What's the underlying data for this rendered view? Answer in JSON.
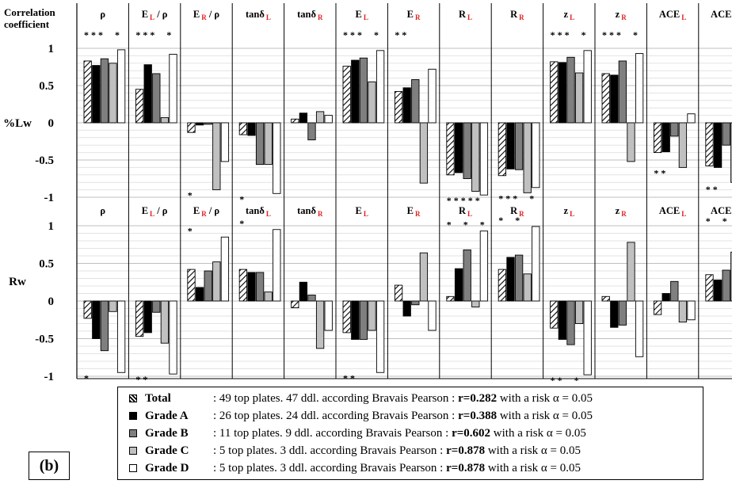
{
  "corner_label": [
    "Correlation",
    "coefficient"
  ],
  "chart_data": {
    "type": "bar",
    "panel_label": "(b)",
    "legend": [
      {
        "name": "Total",
        "pattern": "hatched",
        "text": ": 49 top plates. 47 ddl. according Bravais Pearson : ",
        "r": "r=0.282",
        "risk": " with a risk α = 0.05"
      },
      {
        "name": "Grade A",
        "color": "#000000",
        "text": ": 26 top plates. 24 ddl. according Bravais Pearson : ",
        "r": "r=0.388",
        "risk": " with a risk α = 0.05"
      },
      {
        "name": "Grade B",
        "color": "#7f7f7f",
        "text": ": 11 top plates. 9 ddl. according Bravais Pearson : ",
        "r": "r=0.602",
        "risk": " with a risk α = 0.05"
      },
      {
        "name": "Grade C",
        "color": "#c0c0c0",
        "text": ": 5 top plates. 3 ddl. according Bravais Pearson : ",
        "r": "r=0.878",
        "risk": " with a risk α = 0.05"
      },
      {
        "name": "Grade D",
        "color": "#ffffff",
        "text": ": 5 top plates. 3 ddl. according Bravais Pearson : ",
        "r": "r=0.878",
        "risk": " with a risk α = 0.05"
      }
    ],
    "categories": [
      {
        "base": "ρ",
        "sub": "",
        "suffix": ""
      },
      {
        "base": "E",
        "sub": "L",
        "suffix": " / ρ"
      },
      {
        "base": "E",
        "sub": "R",
        "suffix": " / ρ"
      },
      {
        "base": "tanδ",
        "sub": "L",
        "suffix": ""
      },
      {
        "base": "tanδ",
        "sub": "R",
        "suffix": ""
      },
      {
        "base": "E",
        "sub": "L",
        "suffix": ""
      },
      {
        "base": "E",
        "sub": "R",
        "suffix": ""
      },
      {
        "base": "R",
        "sub": "L",
        "suffix": ""
      },
      {
        "base": "R",
        "sub": "R",
        "suffix": ""
      },
      {
        "base": "z",
        "sub": "L",
        "suffix": ""
      },
      {
        "base": "z",
        "sub": "R",
        "suffix": ""
      },
      {
        "base": "ACE",
        "sub": "L",
        "suffix": ""
      },
      {
        "base": "ACE",
        "sub": "R",
        "suffix": ""
      }
    ],
    "ylim": [
      -1,
      1
    ],
    "yticks": [
      "1",
      "0.5",
      "0",
      "-0.5",
      "-1"
    ],
    "yticks_values": [
      1,
      0.5,
      0,
      -0.5,
      -1
    ],
    "panels": [
      {
        "ylabel": "%Lw",
        "values": [
          [
            0.83,
            0.77,
            0.86,
            0.8,
            0.98
          ],
          [
            0.45,
            0.78,
            0.66,
            0.07,
            0.92
          ],
          [
            -0.13,
            -0.03,
            -0.02,
            -0.9,
            -0.52
          ],
          [
            -0.16,
            -0.17,
            -0.56,
            -0.56,
            -0.95
          ],
          [
            0.05,
            0.13,
            -0.23,
            0.15,
            0.1
          ],
          [
            0.76,
            0.84,
            0.87,
            0.55,
            0.97
          ],
          [
            0.42,
            0.47,
            0.58,
            -0.81,
            0.72
          ],
          [
            -0.7,
            -0.67,
            -0.75,
            -0.92,
            -0.97
          ],
          [
            -0.71,
            -0.62,
            -0.63,
            -0.94,
            -0.87
          ],
          [
            0.82,
            0.81,
            0.88,
            0.67,
            0.97
          ],
          [
            0.66,
            0.64,
            0.83,
            -0.52,
            0.93
          ],
          [
            -0.4,
            -0.39,
            -0.18,
            -0.6,
            0.12
          ],
          [
            -0.58,
            -0.6,
            -0.3,
            -0.8,
            -0.82
          ]
        ],
        "stars_above": [
          "***  *",
          "***  *",
          "",
          "",
          "",
          "***  *",
          "**",
          "",
          "",
          "***  *",
          "***  *",
          "",
          ""
        ],
        "stars_below": [
          "",
          "",
          "*",
          "*",
          "",
          "",
          "",
          "*****",
          "***  *",
          "",
          "",
          "**",
          "**"
        ]
      },
      {
        "ylabel": "Rw",
        "values": [
          [
            -0.23,
            -0.5,
            -0.66,
            -0.14,
            -0.95
          ],
          [
            -0.47,
            -0.42,
            -0.15,
            -0.56,
            -0.97
          ],
          [
            0.42,
            0.18,
            0.4,
            0.52,
            0.85
          ],
          [
            0.42,
            0.38,
            0.38,
            0.12,
            0.95
          ],
          [
            -0.09,
            0.25,
            0.08,
            -0.63,
            -0.39
          ],
          [
            -0.42,
            -0.51,
            -0.51,
            -0.39,
            -0.95
          ],
          [
            0.21,
            -0.2,
            -0.05,
            0.64,
            -0.39
          ],
          [
            0.06,
            0.43,
            0.68,
            -0.08,
            0.93
          ],
          [
            0.42,
            0.58,
            0.61,
            0.36,
            0.99
          ],
          [
            -0.36,
            -0.51,
            -0.58,
            -0.3,
            -0.98
          ],
          [
            0.06,
            -0.35,
            -0.32,
            0.78,
            -0.74
          ],
          [
            -0.18,
            0.1,
            0.26,
            -0.28,
            -0.25
          ],
          [
            0.35,
            0.28,
            0.41,
            0.65,
            0.98
          ]
        ],
        "stars_above": [
          "",
          "",
          "*",
          "*",
          "",
          "",
          "",
          "*  *  *",
          "*  *",
          "",
          "",
          "",
          "*  *"
        ],
        "stars_below": [
          "*",
          "**",
          "",
          "",
          "",
          "**",
          "",
          "",
          "",
          "**  *",
          "",
          "",
          ""
        ]
      }
    ]
  }
}
